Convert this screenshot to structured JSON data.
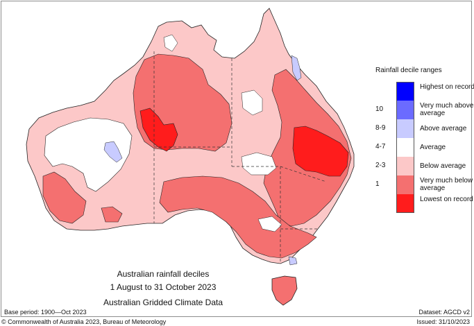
{
  "map": {
    "caption_line1": "Australian rainfall deciles",
    "caption_line2": "1 August to 31 October 2023",
    "caption_line3": "Australian Gridded Climate Data",
    "base_period": "Base period: 1900—Oct 2023",
    "dataset": "Dataset: AGCD v2",
    "copyright": "© Commonwealth of Australia 2023, Bureau of Meteorology",
    "issued": "Issued: 31/10/2023"
  },
  "legend": {
    "title": "Rainfall decile ranges",
    "items": [
      {
        "range": "",
        "label": "Highest on record",
        "color": "#0000ff"
      },
      {
        "range": "10",
        "label": "Very much above average",
        "color": "#6b6bff"
      },
      {
        "range": "8-9",
        "label": "Above average",
        "color": "#c8cbff"
      },
      {
        "range": "4-7",
        "label": "Average",
        "color": "#ffffff"
      },
      {
        "range": "2-3",
        "label": "Below average",
        "color": "#fcc8c8"
      },
      {
        "range": "1",
        "label": "Very much below average",
        "color": "#f47070"
      },
      {
        "range": "",
        "label": "Lowest on record",
        "color": "#ff1c1c"
      }
    ]
  },
  "colors": {
    "below_average": "#fcc8c8",
    "very_much_below": "#f47070",
    "lowest_on_record": "#ff1c1c",
    "average": "#ffffff",
    "above_average": "#c8cbff"
  }
}
